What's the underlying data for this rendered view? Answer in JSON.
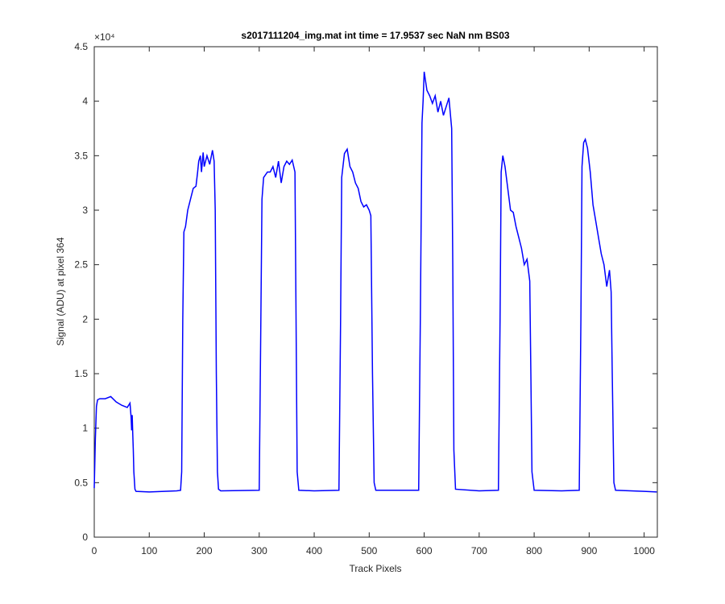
{
  "chart_data": {
    "type": "line",
    "title": "s2017111204_img.mat int time = 17.9537 sec  NaN nm BS03",
    "x_label": "Track Pixels",
    "y_label": "Signal (ADU) at pixel 364",
    "y_exponent_label": "×10⁴",
    "color": "#0000ff",
    "xlim": [
      0,
      1024
    ],
    "ylim": [
      0,
      45000
    ],
    "xticks": [
      0,
      100,
      200,
      300,
      400,
      500,
      600,
      700,
      800,
      900,
      1000
    ],
    "yticks": [
      0,
      {
        "value": 5000,
        "label": "0.5"
      },
      {
        "value": 10000,
        "label": "1"
      },
      {
        "value": 15000,
        "label": "1.5"
      },
      {
        "value": 20000,
        "label": "2"
      },
      {
        "value": 25000,
        "label": "2.5"
      },
      {
        "value": 30000,
        "label": "3"
      },
      {
        "value": 35000,
        "label": "3.5"
      },
      {
        "value": 40000,
        "label": "4"
      },
      {
        "value": 45000,
        "label": "4.5"
      }
    ],
    "x": [
      0,
      2,
      4,
      6,
      10,
      20,
      30,
      40,
      50,
      55,
      60,
      65,
      67,
      68,
      69,
      70,
      71,
      72,
      74,
      76,
      100,
      150,
      157,
      159,
      161,
      163,
      166,
      170,
      175,
      180,
      185,
      188,
      190,
      193,
      195,
      198,
      200,
      205,
      210,
      215,
      218,
      220,
      222,
      224,
      226,
      230,
      300,
      303,
      305,
      308,
      315,
      320,
      325,
      330,
      335,
      340,
      345,
      350,
      355,
      360,
      365,
      367,
      369,
      372,
      400,
      445,
      448,
      450,
      455,
      460,
      465,
      470,
      475,
      480,
      485,
      490,
      495,
      500,
      503,
      506,
      509,
      512,
      550,
      590,
      593,
      596,
      598,
      600,
      605,
      610,
      615,
      620,
      625,
      630,
      635,
      640,
      645,
      650,
      652,
      654,
      657,
      700,
      735,
      738,
      740,
      743,
      747,
      752,
      757,
      762,
      767,
      772,
      777,
      782,
      787,
      792,
      794,
      796,
      800,
      850,
      882,
      885,
      887,
      890,
      893,
      897,
      902,
      907,
      912,
      917,
      922,
      927,
      932,
      937,
      940,
      942,
      945,
      948,
      1000,
      1023
    ],
    "values": [
      4500,
      9000,
      12000,
      12600,
      12700,
      12700,
      12900,
      12400,
      12100,
      12000,
      11900,
      12300,
      11000,
      9800,
      11200,
      9500,
      8000,
      6000,
      4400,
      4200,
      4150,
      4250,
      4300,
      6000,
      20000,
      28000,
      28500,
      30000,
      31000,
      32000,
      32200,
      33500,
      34500,
      35000,
      33500,
      35300,
      34000,
      35000,
      34200,
      35500,
      34500,
      30000,
      15000,
      6000,
      4400,
      4250,
      4300,
      20000,
      31000,
      33000,
      33500,
      33500,
      34000,
      33000,
      34500,
      32500,
      34000,
      34500,
      34200,
      34600,
      33500,
      20000,
      6000,
      4300,
      4250,
      4300,
      20000,
      33000,
      35200,
      35600,
      34000,
      33500,
      32500,
      32000,
      30800,
      30300,
      30500,
      30000,
      29500,
      15000,
      5000,
      4300,
      4300,
      4300,
      20000,
      38000,
      40000,
      42700,
      41000,
      40500,
      39800,
      40500,
      39000,
      40000,
      38700,
      39500,
      40300,
      37500,
      25000,
      8000,
      4400,
      4250,
      4300,
      20000,
      33500,
      35000,
      34000,
      32000,
      30000,
      29800,
      28500,
      27500,
      26500,
      25000,
      25500,
      23500,
      15000,
      6000,
      4300,
      4250,
      4300,
      20000,
      34000,
      36200,
      36500,
      35700,
      33500,
      30500,
      29000,
      27500,
      26000,
      25000,
      23000,
      24500,
      22500,
      15000,
      5000,
      4300,
      4200,
      4150
    ]
  }
}
